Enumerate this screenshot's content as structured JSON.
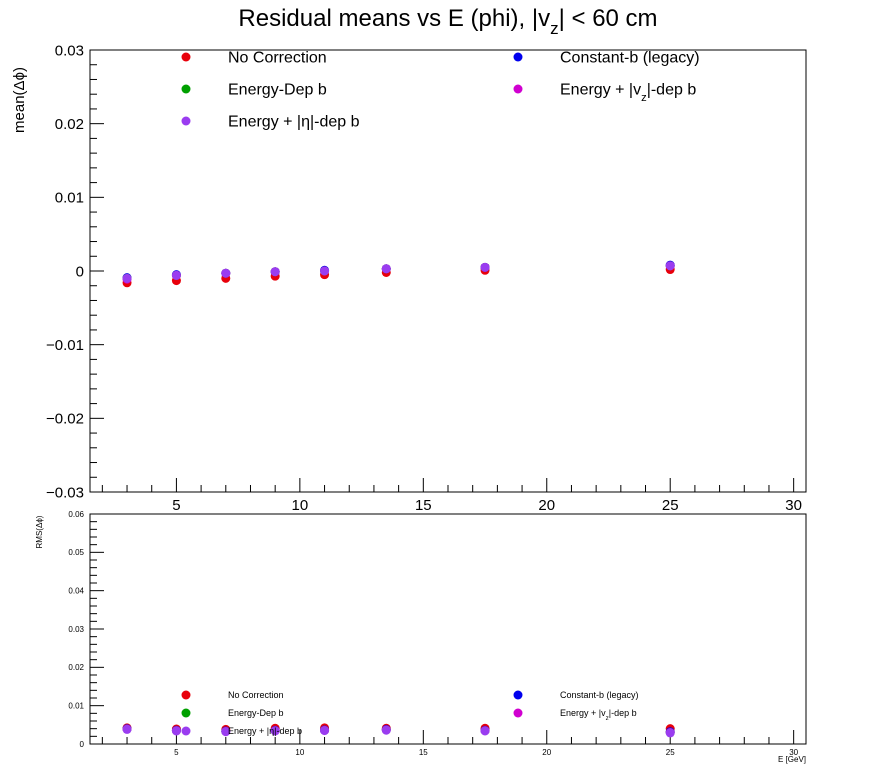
{
  "chart_data": [
    {
      "type": "scatter",
      "title_main": "Residual means vs E (phi), |v",
      "title_sub": "z",
      "title_end": "| < 60 cm",
      "xlabel": "",
      "ylabel": "mean(Δϕ)",
      "xlim": [
        1.5,
        30.5
      ],
      "ylim": [
        -0.03,
        0.03
      ],
      "x_ticks": [
        5,
        10,
        15,
        20,
        25,
        30
      ],
      "y_ticks": [
        -0.03,
        -0.02,
        -0.01,
        0,
        0.01,
        0.02,
        0.03
      ],
      "y_tick_labels": [
        "−0.03",
        "−0.02",
        "−0.01",
        "0",
        "0.01",
        "0.02",
        "0.03"
      ],
      "legend_placement": "top",
      "series": [
        {
          "name": "No Correction",
          "color": "#e8000b",
          "x": [
            3,
            5,
            7,
            9,
            11,
            13.5,
            17.5,
            25
          ],
          "y": [
            -0.0016,
            -0.0013,
            -0.001,
            -0.0007,
            -0.0005,
            -0.0002,
            0.0001,
            0.0002
          ]
        },
        {
          "name": "Constant-b (legacy)",
          "color": "#0000ee",
          "x": [
            3,
            5,
            7,
            9,
            11,
            13.5,
            17.5,
            25
          ],
          "y": [
            -0.0009,
            -0.0005,
            -0.0003,
            -0.0001,
            0.0001,
            0.0003,
            0.0005,
            0.0008
          ]
        },
        {
          "name": "Energy-Dep b",
          "color": "#00a000",
          "x": [
            3,
            5,
            7,
            9,
            11,
            13.5,
            17.5,
            25
          ],
          "y": [
            -0.001,
            -0.0006,
            -0.0003,
            -0.0001,
            0.0,
            0.0003,
            0.0005,
            0.0007
          ]
        },
        {
          "name": "Energy + |v",
          "name_sub": "z",
          "name_end": "|-dep b",
          "color": "#d000d0",
          "x": [
            3,
            5,
            7,
            9,
            11,
            13.5,
            17.5,
            25
          ],
          "y": [
            -0.0011,
            -0.0006,
            -0.0003,
            -0.0001,
            0.0,
            0.0003,
            0.0005,
            0.0007
          ]
        },
        {
          "name": "Energy + |η|-dep b",
          "color": "#9a3cf0",
          "x": [
            3,
            5,
            7,
            9,
            11,
            13.5,
            17.5,
            25
          ],
          "y": [
            -0.001,
            -0.0006,
            -0.0003,
            -0.0001,
            0.0,
            0.0003,
            0.0005,
            0.0007
          ]
        }
      ]
    },
    {
      "type": "scatter",
      "xlabel": "E [GeV]",
      "ylabel": "RMS(Δϕ)",
      "xlim": [
        1.5,
        30.5
      ],
      "ylim": [
        0,
        0.06
      ],
      "x_ticks": [
        5,
        10,
        15,
        20,
        25,
        30
      ],
      "y_ticks": [
        0,
        0.01,
        0.02,
        0.03,
        0.04,
        0.05,
        0.06
      ],
      "y_tick_labels": [
        "0",
        "0.01",
        "0.02",
        "0.03",
        "0.04",
        "0.05",
        "0.06"
      ],
      "legend_placement": "bottom",
      "series": [
        {
          "name": "No Correction",
          "color": "#e8000b",
          "x": [
            3,
            5,
            7,
            9,
            11,
            13.5,
            17.5,
            25
          ],
          "y": [
            0.0042,
            0.0039,
            0.0038,
            0.0041,
            0.0042,
            0.0041,
            0.0041,
            0.004
          ]
        },
        {
          "name": "Constant-b (legacy)",
          "color": "#0000ee",
          "x": [
            3,
            5,
            7,
            9,
            11,
            13.5,
            17.5,
            25
          ],
          "y": [
            0.004,
            0.0036,
            0.0034,
            0.0036,
            0.0037,
            0.0038,
            0.0036,
            0.0032
          ]
        },
        {
          "name": "Energy-Dep b",
          "color": "#00a000",
          "x": [
            3,
            5,
            7,
            9,
            11,
            13.5,
            17.5,
            25
          ],
          "y": [
            0.0039,
            0.0035,
            0.0033,
            0.0035,
            0.0036,
            0.0037,
            0.0035,
            0.003
          ]
        },
        {
          "name": "Energy + |v",
          "name_sub": "z",
          "name_end": "|-dep b",
          "color": "#d000d0",
          "x": [
            3,
            5,
            7,
            9,
            11,
            13.5,
            17.5,
            25
          ],
          "y": [
            0.0039,
            0.0035,
            0.0033,
            0.0035,
            0.0036,
            0.0037,
            0.0035,
            0.003
          ]
        },
        {
          "name": "Energy + |η|-dep b",
          "color": "#9a3cf0",
          "x": [
            3,
            5,
            7,
            9,
            11,
            13.5,
            17.5,
            25
          ],
          "y": [
            0.0038,
            0.0034,
            0.0032,
            0.0034,
            0.0035,
            0.0036,
            0.0034,
            0.0029
          ]
        }
      ]
    }
  ]
}
